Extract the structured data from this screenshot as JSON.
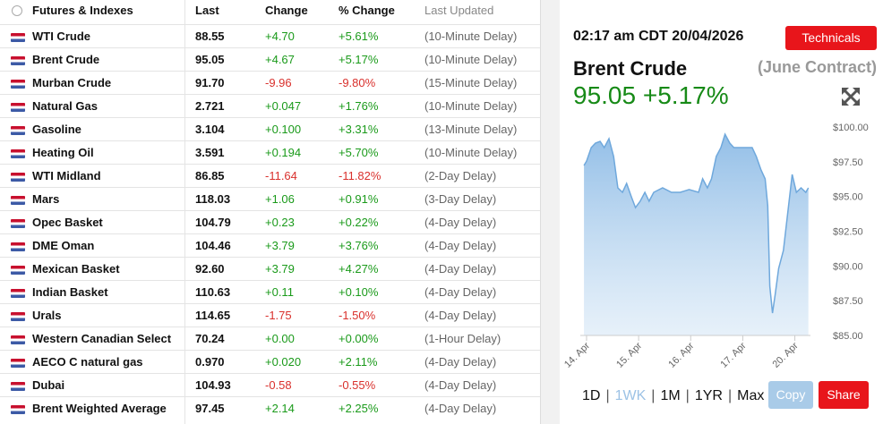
{
  "table": {
    "headers": [
      "Futures & Indexes",
      "Last",
      "Change",
      "% Change",
      "Last Updated"
    ],
    "rows": [
      [
        "WTI Crude",
        "88.55",
        "+4.70",
        "+5.61%",
        "(10-Minute Delay)"
      ],
      [
        "Brent Crude",
        "95.05",
        "+4.67",
        "+5.17%",
        "(10-Minute Delay)"
      ],
      [
        "Murban Crude",
        "91.70",
        "-9.96",
        "-9.80%",
        "(15-Minute Delay)"
      ],
      [
        "Natural Gas",
        "2.721",
        "+0.047",
        "+1.76%",
        "(10-Minute Delay)"
      ],
      [
        "Gasoline",
        "3.104",
        "+0.100",
        "+3.31%",
        "(13-Minute Delay)"
      ],
      [
        "Heating Oil",
        "3.591",
        "+0.194",
        "+5.70%",
        "(10-Minute Delay)"
      ],
      [
        "WTI Midland",
        "86.85",
        "-11.64",
        "-11.82%",
        "(2-Day Delay)"
      ],
      [
        "Mars",
        "118.03",
        "+1.06",
        "+0.91%",
        "(3-Day Delay)"
      ],
      [
        "Opec Basket",
        "104.79",
        "+0.23",
        "+0.22%",
        "(4-Day Delay)"
      ],
      [
        "DME Oman",
        "104.46",
        "+3.79",
        "+3.76%",
        "(4-Day Delay)"
      ],
      [
        "Mexican Basket",
        "92.60",
        "+3.79",
        "+4.27%",
        "(4-Day Delay)"
      ],
      [
        "Indian Basket",
        "110.63",
        "+0.11",
        "+0.10%",
        "(4-Day Delay)"
      ],
      [
        "Urals",
        "114.65",
        "-1.75",
        "-1.50%",
        "(4-Day Delay)"
      ],
      [
        "Western Canadian Select",
        "70.24",
        "+0.00",
        "+0.00%",
        "(1-Hour Delay)"
      ],
      [
        "AECO C natural gas",
        "0.970",
        "+0.020",
        "+2.11%",
        "(4-Day Delay)"
      ],
      [
        "Dubai",
        "104.93",
        "-0.58",
        "-0.55%",
        "(4-Day Delay)"
      ],
      [
        "Brent Weighted Average",
        "97.45",
        "+2.14",
        "+2.25%",
        "(4-Day Delay)"
      ]
    ]
  },
  "panel": {
    "timestamp": "02:17 am CDT 20/04/2026",
    "button": "Technicals",
    "name": "Brent Crude",
    "contract": "(June Contract)",
    "price": "95.05",
    "change": "+5.17%",
    "ranges": [
      "1D",
      "1WK",
      "1M",
      "1YR",
      "Max"
    ],
    "copy": "Copy",
    "share": "Share"
  },
  "chart_data": {
    "type": "area",
    "color": "#6fa8dc",
    "x": [
      -0.05,
      0,
      0.09,
      0.17,
      0.26,
      0.34,
      0.43,
      0.52,
      0.6,
      0.69,
      0.77,
      0.86,
      0.94,
      1.03,
      1.12,
      1.2,
      1.29,
      1.46,
      1.63,
      1.8,
      1.97,
      2.15,
      2.23,
      2.32,
      2.4,
      2.49,
      2.58,
      2.66,
      2.75,
      2.83,
      3.0,
      3.18,
      3.26,
      3.35,
      3.43,
      3.48,
      3.52,
      3.57,
      3.62,
      3.69,
      3.78,
      3.86,
      3.95,
      4.03,
      4.12,
      4.21,
      4.26
    ],
    "values": [
      97.23,
      97.55,
      98.52,
      98.84,
      98.97,
      98.52,
      99.16,
      97.88,
      95.62,
      95.3,
      95.94,
      94.98,
      94.2,
      94.66,
      95.3,
      94.66,
      95.3,
      95.62,
      95.3,
      95.3,
      95.5,
      95.3,
      96.27,
      95.62,
      96.27,
      97.88,
      98.52,
      99.48,
      98.84,
      98.52,
      98.52,
      98.52,
      97.88,
      96.91,
      96.27,
      94.33,
      88.54,
      86.61,
      87.9,
      89.83,
      91.12,
      93.69,
      96.59,
      95.3,
      95.62,
      95.3,
      95.62
    ],
    "xlim": [
      -0.12,
      4.3
    ],
    "xticks": [
      {
        "value": 0,
        "label": "14. Apr"
      },
      {
        "value": 1,
        "label": "15. Apr"
      },
      {
        "value": 2,
        "label": "16. Apr"
      },
      {
        "value": 3,
        "label": "17. Apr"
      },
      {
        "value": 4,
        "label": "20. Apr"
      }
    ],
    "ylim": [
      85,
      100
    ],
    "yticks": [
      {
        "value": 85,
        "label": "$85.00"
      },
      {
        "value": 87.5,
        "label": "$87.50"
      },
      {
        "value": 90,
        "label": "$90.00"
      },
      {
        "value": 92.5,
        "label": "$92.50"
      },
      {
        "value": 95,
        "label": "$95.00"
      },
      {
        "value": 97.5,
        "label": "$97.50"
      },
      {
        "value": 100,
        "label": "$100.00"
      }
    ]
  }
}
